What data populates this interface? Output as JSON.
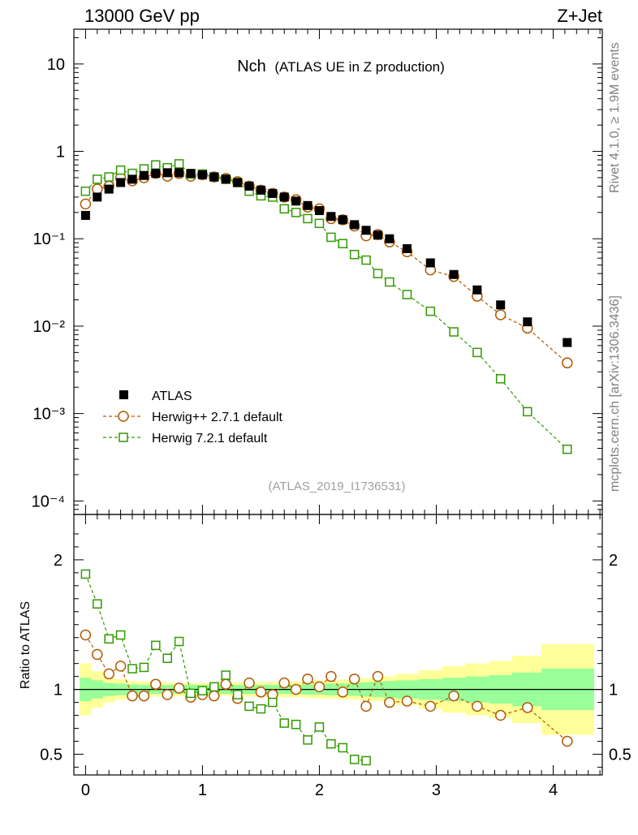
{
  "header": {
    "left": "13000 GeV pp",
    "right": "Z+Jet"
  },
  "plot_title": {
    "main": "Nch",
    "sub": "(ATLAS UE in Z production)"
  },
  "side_labels": {
    "rivet": "Rivet 4.1.0, ≥ 1.9M events",
    "mcplots": "mcplots.cern.ch [arXiv:1306.3436]"
  },
  "analysis_id": "(ATLAS_2019_I1736531)",
  "ratio_ylabel": "Ratio to ATLAS",
  "colors": {
    "data": "#000000",
    "herwig_pp": "#b35900",
    "herwig7": "#339900",
    "band_inner": "#99ff99",
    "band_outer": "#ffff99"
  },
  "legend": [
    {
      "name": "ATLAS",
      "marker": "filled-square"
    },
    {
      "name": "Herwig++ 2.7.1 default",
      "marker": "open-circle"
    },
    {
      "name": "Herwig 7.2.1 default",
      "marker": "open-square"
    }
  ],
  "chart_data": {
    "type": "scatter",
    "xlim": [
      -0.1,
      4.42
    ],
    "xticks": [
      0,
      1,
      2,
      3,
      4
    ],
    "main": {
      "yscale": "log",
      "ylim": [
        7e-05,
        25
      ],
      "yticks": [
        {
          "value": 10,
          "label": "10"
        },
        {
          "value": 1,
          "label": "1"
        },
        {
          "value": 0.1,
          "label": "10⁻¹"
        },
        {
          "value": 0.01,
          "label": "10⁻²"
        },
        {
          "value": 0.001,
          "label": "10⁻³"
        },
        {
          "value": 0.0001,
          "label": "10⁻⁴"
        }
      ]
    },
    "ratio": {
      "ylim": [
        0.34,
        2.35
      ],
      "yticks": [
        {
          "value": 2,
          "label": "2"
        },
        {
          "value": 1,
          "label": "1"
        },
        {
          "value": 0.5,
          "label": "0.5"
        }
      ]
    },
    "x": [
      0.0,
      0.1,
      0.2,
      0.3,
      0.4,
      0.5,
      0.6,
      0.7,
      0.8,
      0.9,
      1.0,
      1.1,
      1.2,
      1.3,
      1.4,
      1.5,
      1.6,
      1.7,
      1.8,
      1.9,
      2.0,
      2.1,
      2.2,
      2.3,
      2.4,
      2.5,
      2.6,
      2.75,
      2.95,
      3.15,
      3.35,
      3.55,
      3.78,
      4.12
    ],
    "series": [
      {
        "name": "ATLAS",
        "values": [
          0.185,
          0.3,
          0.37,
          0.44,
          0.48,
          0.53,
          0.56,
          0.57,
          0.57,
          0.56,
          0.54,
          0.51,
          0.48,
          0.44,
          0.4,
          0.36,
          0.33,
          0.3,
          0.27,
          0.24,
          0.21,
          0.18,
          0.165,
          0.145,
          0.125,
          0.11,
          0.1,
          0.077,
          0.053,
          0.039,
          0.026,
          0.0175,
          0.0112,
          0.0065
        ]
      },
      {
        "name": "Herwig++ 2.7.1 default",
        "values": [
          0.25,
          0.37,
          0.4,
          0.5,
          0.46,
          0.5,
          0.56,
          0.52,
          0.56,
          0.52,
          0.54,
          0.51,
          0.49,
          0.45,
          0.4,
          0.36,
          0.33,
          0.3,
          0.28,
          0.23,
          0.22,
          0.17,
          0.165,
          0.14,
          0.108,
          0.112,
          0.092,
          0.071,
          0.044,
          0.037,
          0.022,
          0.0135,
          0.0095,
          0.0038
        ]
      },
      {
        "name": "Herwig 7.2.1 default",
        "values": [
          0.35,
          0.48,
          0.51,
          0.61,
          0.56,
          0.63,
          0.7,
          0.65,
          0.72,
          0.55,
          0.55,
          0.51,
          0.48,
          0.44,
          0.35,
          0.31,
          0.3,
          0.22,
          0.2,
          0.17,
          0.15,
          0.104,
          0.088,
          0.066,
          0.057,
          0.04,
          0.032,
          0.023,
          0.0148,
          0.0086,
          0.005,
          0.0025,
          0.00105,
          0.00039
        ]
      }
    ],
    "ratios": [
      {
        "name": "Herwig++ 2.7.1 default",
        "values": [
          1.42,
          1.27,
          1.12,
          1.18,
          0.95,
          0.95,
          1.04,
          0.96,
          1.01,
          0.94,
          0.96,
          0.95,
          1.04,
          0.93,
          1.05,
          0.98,
          0.96,
          1.05,
          1.0,
          1.08,
          1.02,
          1.1,
          0.98,
          1.08,
          0.87,
          1.1,
          0.9,
          0.91,
          0.87,
          0.95,
          0.87,
          0.8,
          0.86,
          0.6
        ]
      },
      {
        "name": "Herwig 7.2.1 default",
        "values": [
          1.89,
          1.66,
          1.39,
          1.42,
          1.16,
          1.17,
          1.34,
          1.24,
          1.37,
          0.97,
          0.99,
          1.02,
          1.11,
          0.96,
          0.87,
          0.85,
          0.9,
          0.74,
          0.73,
          0.61,
          0.71,
          0.58,
          0.55,
          0.46,
          0.45
        ]
      }
    ],
    "band_x": [
      -0.05,
      0.05,
      0.15,
      0.25,
      0.35,
      0.45,
      0.55,
      0.65,
      0.75,
      0.85,
      0.95,
      1.05,
      1.15,
      1.25,
      1.35,
      1.45,
      1.55,
      1.65,
      1.75,
      1.85,
      1.95,
      2.05,
      2.15,
      2.25,
      2.35,
      2.45,
      2.55,
      2.65,
      2.85,
      3.05,
      3.25,
      3.45,
      3.65,
      3.9,
      4.35
    ],
    "band_inner": [
      0.09,
      0.07,
      0.05,
      0.045,
      0.04,
      0.035,
      0.035,
      0.035,
      0.035,
      0.035,
      0.035,
      0.035,
      0.035,
      0.035,
      0.035,
      0.035,
      0.035,
      0.035,
      0.035,
      0.04,
      0.04,
      0.045,
      0.045,
      0.05,
      0.055,
      0.06,
      0.065,
      0.07,
      0.08,
      0.09,
      0.1,
      0.11,
      0.13,
      0.16
    ],
    "band_outer": [
      0.2,
      0.14,
      0.1,
      0.08,
      0.065,
      0.06,
      0.055,
      0.055,
      0.05,
      0.05,
      0.05,
      0.05,
      0.05,
      0.055,
      0.055,
      0.055,
      0.06,
      0.06,
      0.06,
      0.065,
      0.07,
      0.07,
      0.075,
      0.08,
      0.085,
      0.09,
      0.1,
      0.12,
      0.15,
      0.18,
      0.2,
      0.22,
      0.26,
      0.35
    ]
  }
}
